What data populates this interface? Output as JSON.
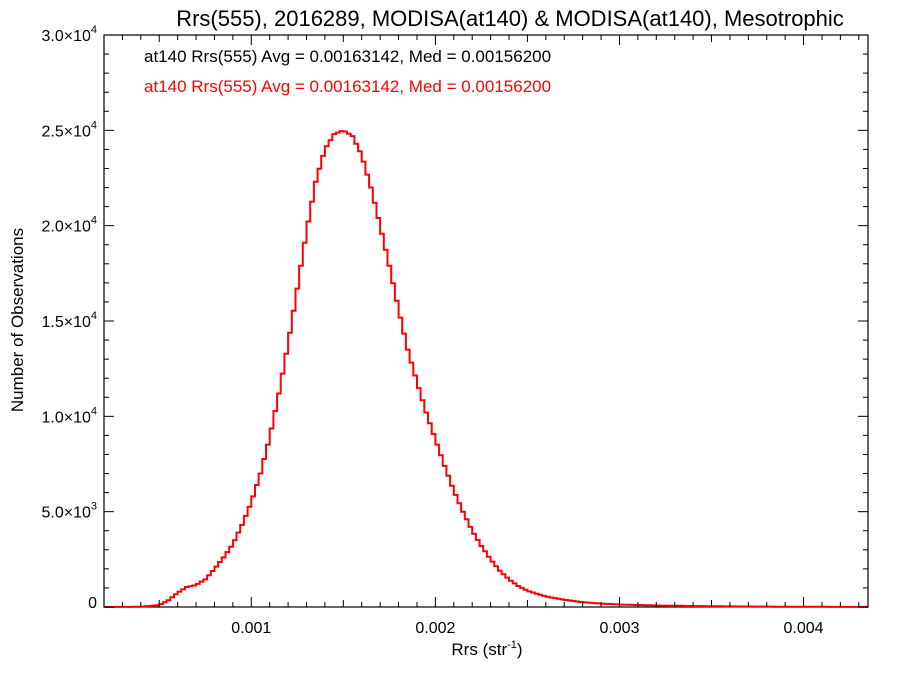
{
  "chart_data": {
    "type": "line",
    "title": "Rrs(555), 2016289, MODISA(at140) & MODISA(at140), Mesotrophic",
    "xlabel": "Rrs (str",
    "xlabel_sup": "-1",
    "xlabel_close": ")",
    "ylabel": "Number of Observations",
    "xlim": [
      0.0002,
      0.00435
    ],
    "ylim": [
      0,
      30000
    ],
    "x_ticks": [
      {
        "value": 0.001,
        "label": "0.001"
      },
      {
        "value": 0.002,
        "label": "0.002"
      },
      {
        "value": 0.003,
        "label": "0.003"
      },
      {
        "value": 0.004,
        "label": "0.004"
      }
    ],
    "y_ticks": [
      {
        "value": 0,
        "mant": "0",
        "exp": ""
      },
      {
        "value": 5000,
        "mant": "5.0×10",
        "exp": "3"
      },
      {
        "value": 10000,
        "mant": "1.0×10",
        "exp": "4"
      },
      {
        "value": 15000,
        "mant": "1.5×10",
        "exp": "4"
      },
      {
        "value": 20000,
        "mant": "2.0×10",
        "exp": "4"
      },
      {
        "value": 25000,
        "mant": "2.5×10",
        "exp": "4"
      },
      {
        "value": 30000,
        "mant": "3.0×10",
        "exp": "4"
      }
    ],
    "annotations": [
      {
        "text": "at140 Rrs(555) Avg = 0.00163142, Med = 0.00156200",
        "color": "#000000"
      },
      {
        "text": "at140 Rrs(555) Avg = 0.00163142, Med = 0.00156200",
        "color": "#ff0000"
      }
    ],
    "series": [
      {
        "color": "#ff0000",
        "step": true,
        "points": [
          [
            0.0002,
            0
          ],
          [
            0.0004,
            10
          ],
          [
            0.0005,
            100
          ],
          [
            0.00055,
            350
          ],
          [
            0.0006,
            750
          ],
          [
            0.00065,
            1050
          ],
          [
            0.0007,
            1150
          ],
          [
            0.00075,
            1450
          ],
          [
            0.0008,
            2000
          ],
          [
            0.00085,
            2600
          ],
          [
            0.0009,
            3300
          ],
          [
            0.00095,
            4300
          ],
          [
            0.001,
            5500
          ],
          [
            0.00105,
            7000
          ],
          [
            0.0011,
            8900
          ],
          [
            0.00115,
            11200
          ],
          [
            0.0012,
            13800
          ],
          [
            0.00125,
            16700
          ],
          [
            0.0013,
            19700
          ],
          [
            0.00135,
            22300
          ],
          [
            0.0014,
            24000
          ],
          [
            0.00145,
            24800
          ],
          [
            0.0015,
            25000
          ],
          [
            0.00155,
            24700
          ],
          [
            0.0016,
            23700
          ],
          [
            0.00165,
            22000
          ],
          [
            0.0017,
            20000
          ],
          [
            0.00175,
            17900
          ],
          [
            0.0018,
            15600
          ],
          [
            0.00185,
            13500
          ],
          [
            0.0019,
            11800
          ],
          [
            0.00195,
            10200
          ],
          [
            0.002,
            8800
          ],
          [
            0.00205,
            7400
          ],
          [
            0.0021,
            6100
          ],
          [
            0.00215,
            5000
          ],
          [
            0.0022,
            4000
          ],
          [
            0.00225,
            3200
          ],
          [
            0.0023,
            2500
          ],
          [
            0.00235,
            1900
          ],
          [
            0.0024,
            1450
          ],
          [
            0.00245,
            1100
          ],
          [
            0.0025,
            850
          ],
          [
            0.0026,
            550
          ],
          [
            0.0027,
            380
          ],
          [
            0.0028,
            250
          ],
          [
            0.0029,
            180
          ],
          [
            0.003,
            130
          ],
          [
            0.0032,
            80
          ],
          [
            0.0034,
            50
          ],
          [
            0.0036,
            30
          ],
          [
            0.0038,
            20
          ],
          [
            0.004,
            12
          ],
          [
            0.0042,
            6
          ],
          [
            0.00435,
            3
          ]
        ]
      }
    ]
  }
}
